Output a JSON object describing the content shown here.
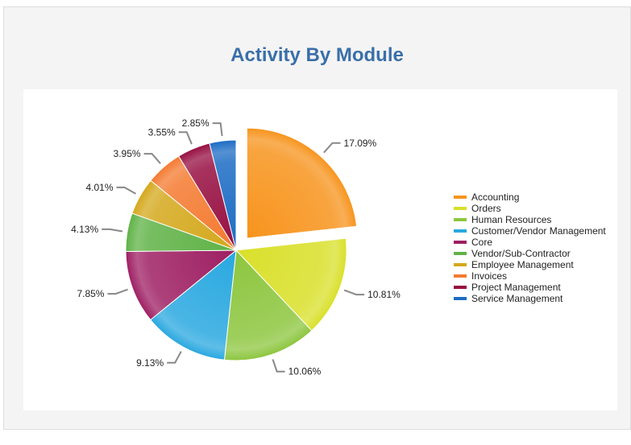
{
  "chart_data": {
    "type": "pie",
    "title": "Activity By Module",
    "legend_position": "right",
    "exploded": "Accounting",
    "slices": [
      {
        "name": "Accounting",
        "value": 17.09,
        "label": "17.09%",
        "color": "#f7941d"
      },
      {
        "name": "Orders",
        "value": 10.81,
        "label": "10.81%",
        "color": "#d9e02a"
      },
      {
        "name": "Human Resources",
        "value": 10.06,
        "label": "10.06%",
        "color": "#8dc63f"
      },
      {
        "name": "Customer/Vendor Management",
        "value": 9.13,
        "label": "9.13%",
        "color": "#29a8e0"
      },
      {
        "name": "Core",
        "value": 7.85,
        "label": "7.85%",
        "color": "#9e1f63"
      },
      {
        "name": "Vendor/Sub-Contractor",
        "value": 4.13,
        "label": "4.13%",
        "color": "#5fb246"
      },
      {
        "name": "Employee Management",
        "value": 4.01,
        "label": "4.01%",
        "color": "#d4a81c"
      },
      {
        "name": "Invoices",
        "value": 3.95,
        "label": "3.95%",
        "color": "#f47a30"
      },
      {
        "name": "Project Management",
        "value": 3.55,
        "label": "3.55%",
        "color": "#970f41"
      },
      {
        "name": "Service Management",
        "value": 2.85,
        "label": "2.85%",
        "color": "#1c6cc4"
      }
    ]
  }
}
